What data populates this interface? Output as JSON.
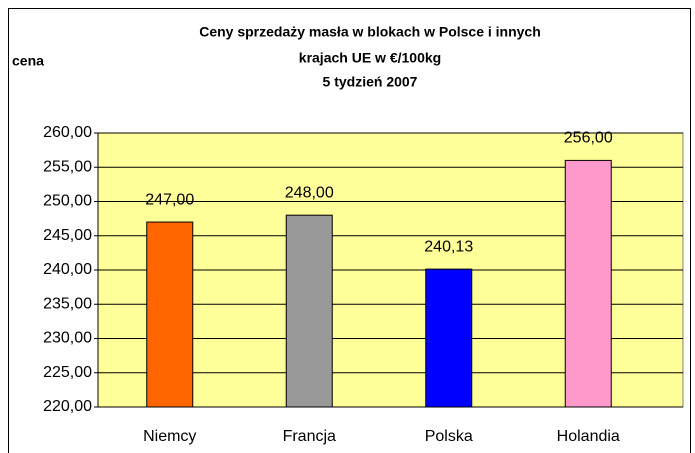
{
  "chart_data": {
    "type": "bar",
    "title": [
      "Ceny sprzedaży masła w blokach w Polsce i  innych",
      "krajach UE w €/100kg",
      "5 tydzień 2007"
    ],
    "y_label": "cena",
    "categories": [
      "Niemcy",
      "Francja",
      "Polska",
      "Holandia"
    ],
    "values": [
      247,
      248,
      240.13,
      256
    ],
    "value_labels": [
      "247,00",
      "248,00",
      "240,13",
      "256,00"
    ],
    "colors": [
      "#ff6600",
      "#999999",
      "#0000ff",
      "#ff99cc"
    ],
    "ylim": [
      220,
      260
    ],
    "yticks": [
      {
        "value": 220,
        "label": "220,00"
      },
      {
        "value": 225,
        "label": "225,00"
      },
      {
        "value": 230,
        "label": "230,00"
      },
      {
        "value": 235,
        "label": "235,00"
      },
      {
        "value": 240,
        "label": "240,00"
      },
      {
        "value": 245,
        "label": "245,00"
      },
      {
        "value": 250,
        "label": "250,00"
      },
      {
        "value": 255,
        "label": "255,00"
      },
      {
        "value": 260,
        "label": "260,00"
      }
    ],
    "grid": true
  }
}
